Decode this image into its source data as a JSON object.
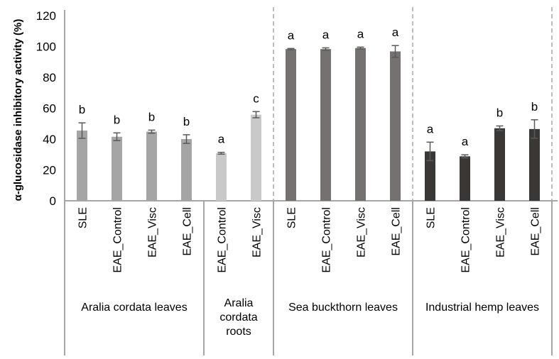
{
  "chart_data": {
    "type": "bar",
    "title": "",
    "xlabel": "",
    "ylabel": "α-glucosidase inhibitory activity (%)",
    "ylim": [
      0,
      120
    ],
    "yticks": [
      0,
      20,
      40,
      60,
      80,
      100,
      120
    ],
    "grid": false,
    "groups": [
      {
        "label": "Aralia cordata leaves",
        "color": "#a5a5a5",
        "categories": [
          "SLE",
          "EAE_Control",
          "EAE_Visc",
          "EAE_Cell"
        ],
        "values": [
          45.5,
          41.5,
          44.8,
          40.0
        ],
        "errors": [
          5.0,
          2.5,
          1.0,
          2.8
        ],
        "letters": [
          "b",
          "b",
          "b",
          "b"
        ]
      },
      {
        "label": "Aralia cordata roots",
        "color": "#c9c9c9",
        "categories": [
          "EAE_Control",
          "EAE_Visc"
        ],
        "values": [
          30.8,
          55.8
        ],
        "errors": [
          0.6,
          2.0
        ],
        "letters": [
          "a",
          "c"
        ]
      },
      {
        "label": "Sea buckthorn leaves",
        "color": "#767171",
        "categories": [
          "SLE",
          "EAE_Control",
          "EAE_Visc",
          "EAE_Cell"
        ],
        "values": [
          98.3,
          98.3,
          99.0,
          96.8
        ],
        "errors": [
          0.4,
          0.8,
          0.6,
          3.8
        ],
        "letters": [
          "a",
          "a",
          "a",
          "a"
        ]
      },
      {
        "label": "Industrial hemp leaves",
        "color": "#3a3737",
        "categories": [
          "SLE",
          "EAE_Control",
          "EAE_Visc",
          "EAE_Cell"
        ],
        "values": [
          32.0,
          28.8,
          47.0,
          46.5
        ],
        "errors": [
          6.0,
          1.0,
          1.5,
          6.0
        ],
        "letters": [
          "a",
          "a",
          "b",
          "b"
        ]
      }
    ],
    "error_bar_color": "#595959"
  }
}
